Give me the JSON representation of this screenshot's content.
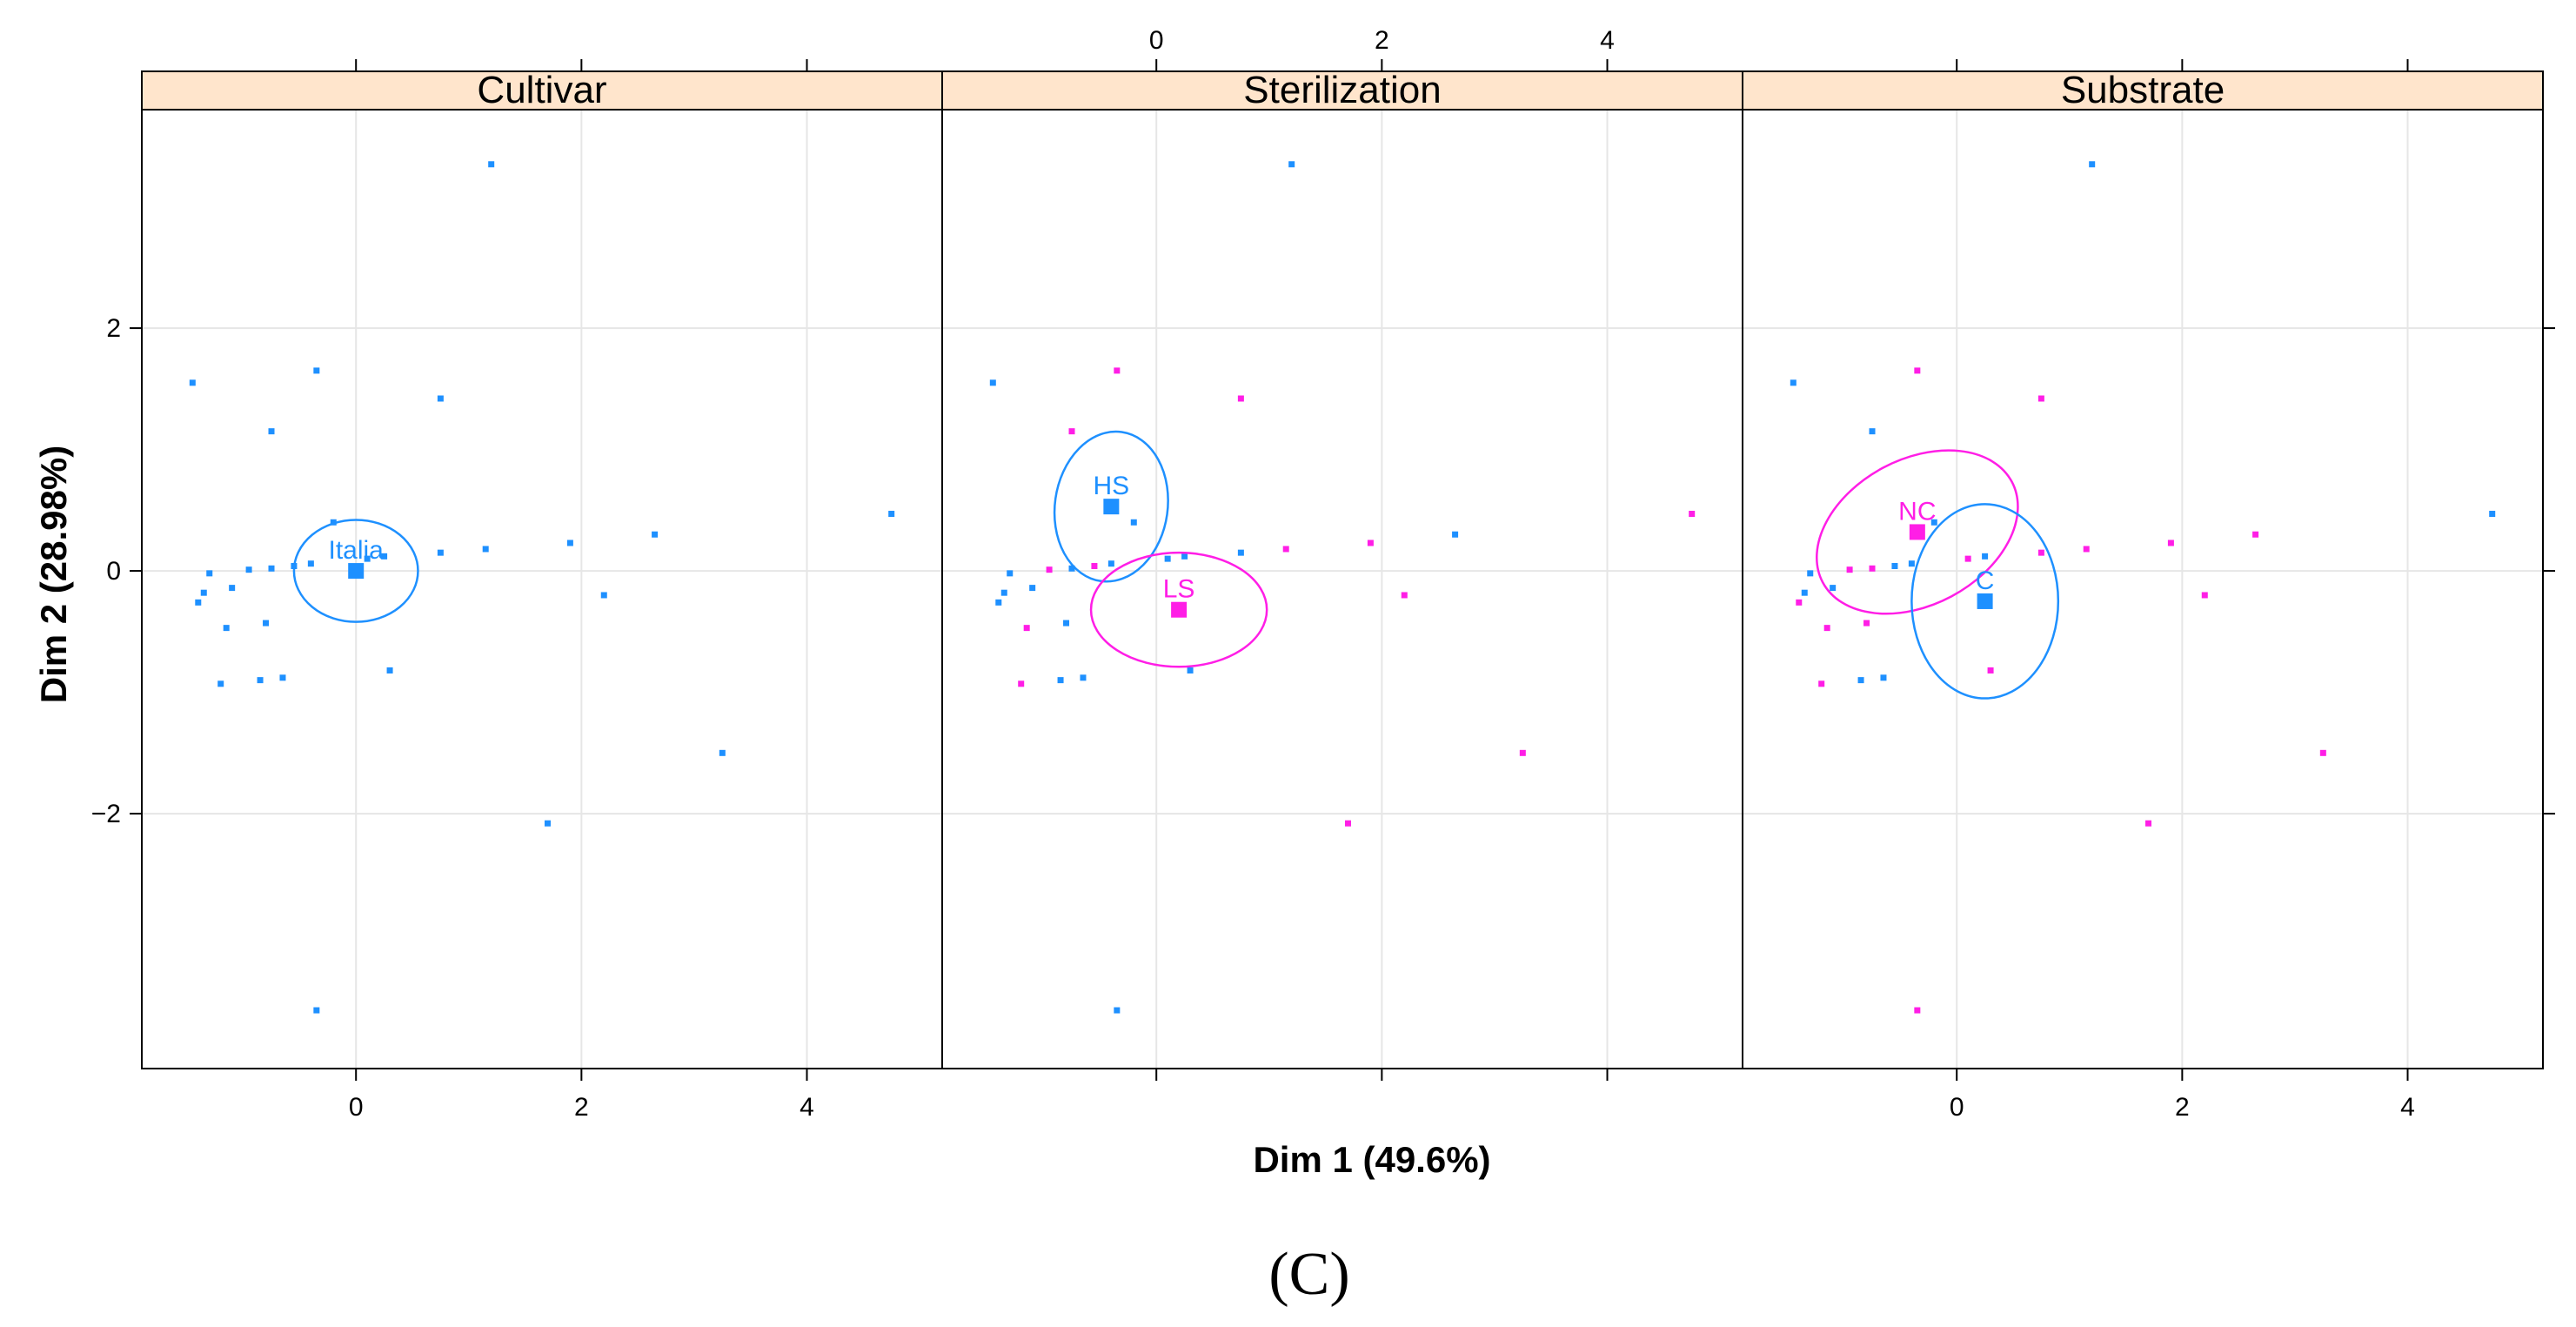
{
  "chart_data": {
    "type": "scatter",
    "caption": "(C)",
    "xlabel": "Dim 1 (49.6%)",
    "ylabel": "Dim 2 (28.98%)",
    "xlim": [
      -1.9,
      5.2
    ],
    "ylim": [
      -4.1,
      3.8
    ],
    "x_ticks": [
      0,
      2,
      4
    ],
    "y_ticks": [
      -2,
      0,
      2
    ],
    "y_tick_labels": [
      "−2",
      "0",
      "2"
    ],
    "colors": {
      "blue": "#1E90FF",
      "magenta": "#FF1EE6",
      "strip": "#FFE5CC",
      "grid": "#E6E6E6"
    },
    "points": [
      {
        "x": 1.2,
        "y": 3.35
      },
      {
        "x": -1.45,
        "y": 1.55
      },
      {
        "x": -0.35,
        "y": 1.65
      },
      {
        "x": 0.75,
        "y": 1.42
      },
      {
        "x": -0.75,
        "y": 1.15
      },
      {
        "x": 4.75,
        "y": 0.47
      },
      {
        "x": -0.2,
        "y": 0.4
      },
      {
        "x": 2.65,
        "y": 0.3
      },
      {
        "x": 1.9,
        "y": 0.23
      },
      {
        "x": 1.15,
        "y": 0.18
      },
      {
        "x": 0.75,
        "y": 0.15
      },
      {
        "x": 0.25,
        "y": 0.12
      },
      {
        "x": 0.1,
        "y": 0.1
      },
      {
        "x": -0.4,
        "y": 0.06
      },
      {
        "x": -0.55,
        "y": 0.04
      },
      {
        "x": -0.75,
        "y": 0.02
      },
      {
        "x": -0.95,
        "y": 0.01
      },
      {
        "x": -1.3,
        "y": -0.02
      },
      {
        "x": -1.1,
        "y": -0.14
      },
      {
        "x": -1.35,
        "y": -0.18
      },
      {
        "x": -1.4,
        "y": -0.26
      },
      {
        "x": 2.2,
        "y": -0.2
      },
      {
        "x": -0.8,
        "y": -0.43
      },
      {
        "x": -1.15,
        "y": -0.47
      },
      {
        "x": 0.3,
        "y": -0.82
      },
      {
        "x": -0.65,
        "y": -0.88
      },
      {
        "x": -0.85,
        "y": -0.9
      },
      {
        "x": -1.2,
        "y": -0.93
      },
      {
        "x": 3.25,
        "y": -1.5
      },
      {
        "x": 1.7,
        "y": -2.08
      },
      {
        "x": -0.35,
        "y": -3.62
      }
    ],
    "panels": [
      {
        "title": "Cultivar",
        "point_groups": "AAAAAAAAAAAAAAAAAAAAAAAAAAAAAAA",
        "groups": [
          {
            "name": "Italia",
            "color_key": "blue",
            "cx": 0.0,
            "cy": 0.0,
            "rx": 0.55,
            "ry": 0.42
          }
        ]
      },
      {
        "title": "Sterilization",
        "point_groups": "AABBBBAABBAAAABABAAAABABAAABBBA",
        "groups": [
          {
            "name": "HS",
            "color_key": "blue",
            "cx": -0.4,
            "cy": 0.53,
            "rx": 0.5,
            "ry": 0.62
          },
          {
            "name": "LS",
            "color_key": "magenta",
            "cx": 0.2,
            "cy": -0.32,
            "rx": 0.78,
            "ry": 0.47
          }
        ]
      },
      {
        "title": "Substrate",
        "point_groups": "BBAABBBAAAABABBAABBBAAAAABBAAAA",
        "groups": [
          {
            "name": "NC",
            "color_key": "magenta",
            "cx": -0.35,
            "cy": 0.32,
            "rx": 0.95,
            "ry": 0.6
          },
          {
            "name": "C",
            "color_key": "blue",
            "cx": 0.25,
            "cy": -0.25,
            "rx": 0.65,
            "ry": 0.8
          }
        ]
      }
    ]
  }
}
